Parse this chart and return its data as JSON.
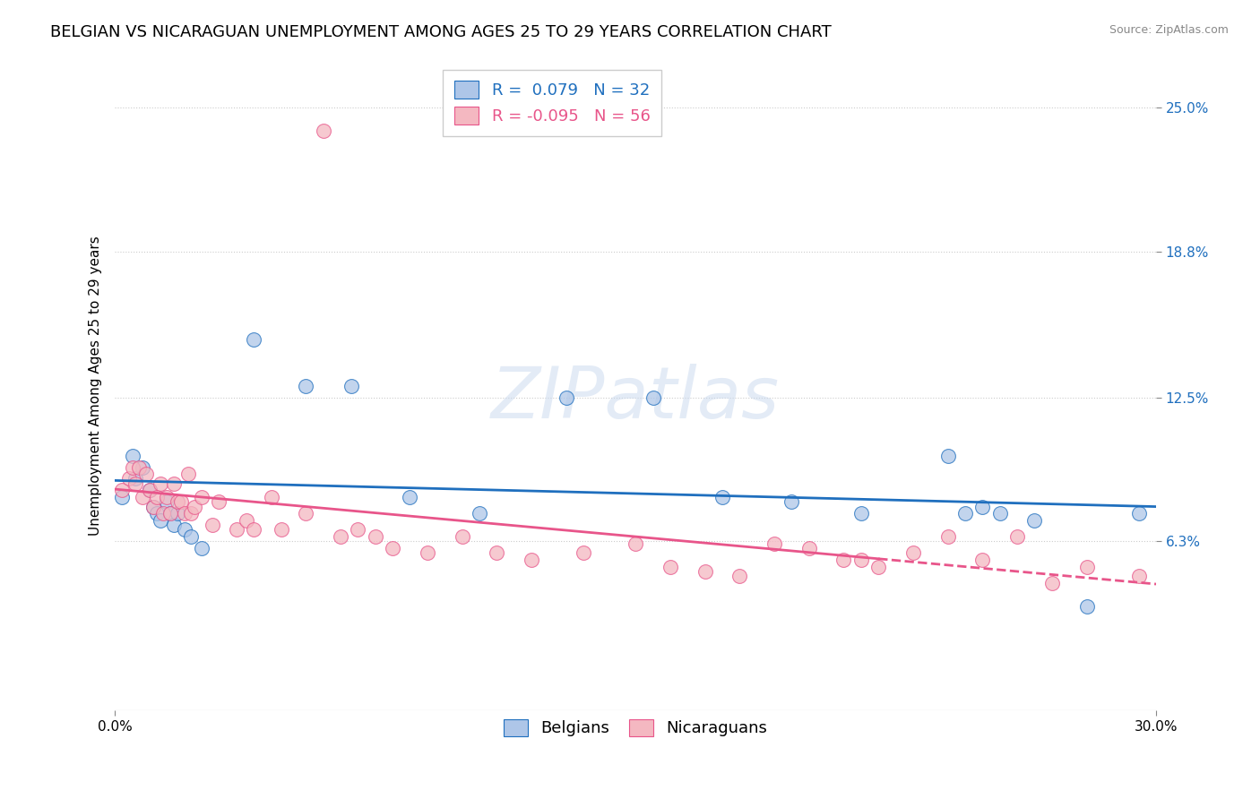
{
  "title": "BELGIAN VS NICARAGUAN UNEMPLOYMENT AMONG AGES 25 TO 29 YEARS CORRELATION CHART",
  "source": "Source: ZipAtlas.com",
  "ylabel": "Unemployment Among Ages 25 to 29 years",
  "xlim": [
    0.0,
    0.3
  ],
  "ylim": [
    -0.01,
    0.27
  ],
  "ytick_labels": [
    "6.3%",
    "12.5%",
    "18.8%",
    "25.0%"
  ],
  "ytick_vals": [
    0.063,
    0.125,
    0.188,
    0.25
  ],
  "belgian_color": "#aec6e8",
  "nicaraguan_color": "#f4b8c1",
  "trend_belgian_color": "#1f6fbe",
  "trend_nicaraguan_color": "#e8558a",
  "R_belgian": 0.079,
  "N_belgian": 32,
  "R_nicaraguan": -0.095,
  "N_nicaraguan": 56,
  "legend_label_belgian": "Belgians",
  "legend_label_nicaraguan": "Nicaraguans",
  "belgians_x": [
    0.002,
    0.005,
    0.006,
    0.008,
    0.01,
    0.011,
    0.012,
    0.013,
    0.015,
    0.016,
    0.017,
    0.018,
    0.02,
    0.022,
    0.025,
    0.04,
    0.055,
    0.068,
    0.085,
    0.105,
    0.13,
    0.155,
    0.175,
    0.195,
    0.215,
    0.24,
    0.245,
    0.25,
    0.255,
    0.265,
    0.28,
    0.295
  ],
  "belgians_y": [
    0.082,
    0.1,
    0.09,
    0.095,
    0.085,
    0.078,
    0.075,
    0.072,
    0.08,
    0.075,
    0.07,
    0.075,
    0.068,
    0.065,
    0.06,
    0.15,
    0.13,
    0.13,
    0.082,
    0.075,
    0.125,
    0.125,
    0.082,
    0.08,
    0.075,
    0.1,
    0.075,
    0.078,
    0.075,
    0.072,
    0.035,
    0.075
  ],
  "nicaraguans_x": [
    0.002,
    0.004,
    0.005,
    0.006,
    0.007,
    0.008,
    0.009,
    0.01,
    0.011,
    0.012,
    0.013,
    0.014,
    0.015,
    0.016,
    0.017,
    0.018,
    0.019,
    0.02,
    0.021,
    0.022,
    0.023,
    0.025,
    0.028,
    0.03,
    0.035,
    0.038,
    0.04,
    0.045,
    0.048,
    0.055,
    0.06,
    0.065,
    0.07,
    0.075,
    0.08,
    0.09,
    0.1,
    0.11,
    0.12,
    0.135,
    0.15,
    0.16,
    0.17,
    0.18,
    0.19,
    0.2,
    0.21,
    0.215,
    0.22,
    0.23,
    0.24,
    0.25,
    0.26,
    0.27,
    0.28,
    0.295
  ],
  "nicaraguans_y": [
    0.085,
    0.09,
    0.095,
    0.088,
    0.095,
    0.082,
    0.092,
    0.085,
    0.078,
    0.082,
    0.088,
    0.075,
    0.082,
    0.075,
    0.088,
    0.08,
    0.08,
    0.075,
    0.092,
    0.075,
    0.078,
    0.082,
    0.07,
    0.08,
    0.068,
    0.072,
    0.068,
    0.082,
    0.068,
    0.075,
    0.24,
    0.065,
    0.068,
    0.065,
    0.06,
    0.058,
    0.065,
    0.058,
    0.055,
    0.058,
    0.062,
    0.052,
    0.05,
    0.048,
    0.062,
    0.06,
    0.055,
    0.055,
    0.052,
    0.058,
    0.065,
    0.055,
    0.065,
    0.045,
    0.052,
    0.048
  ],
  "title_fontsize": 13,
  "label_fontsize": 11,
  "tick_fontsize": 11,
  "legend_fontsize": 13
}
